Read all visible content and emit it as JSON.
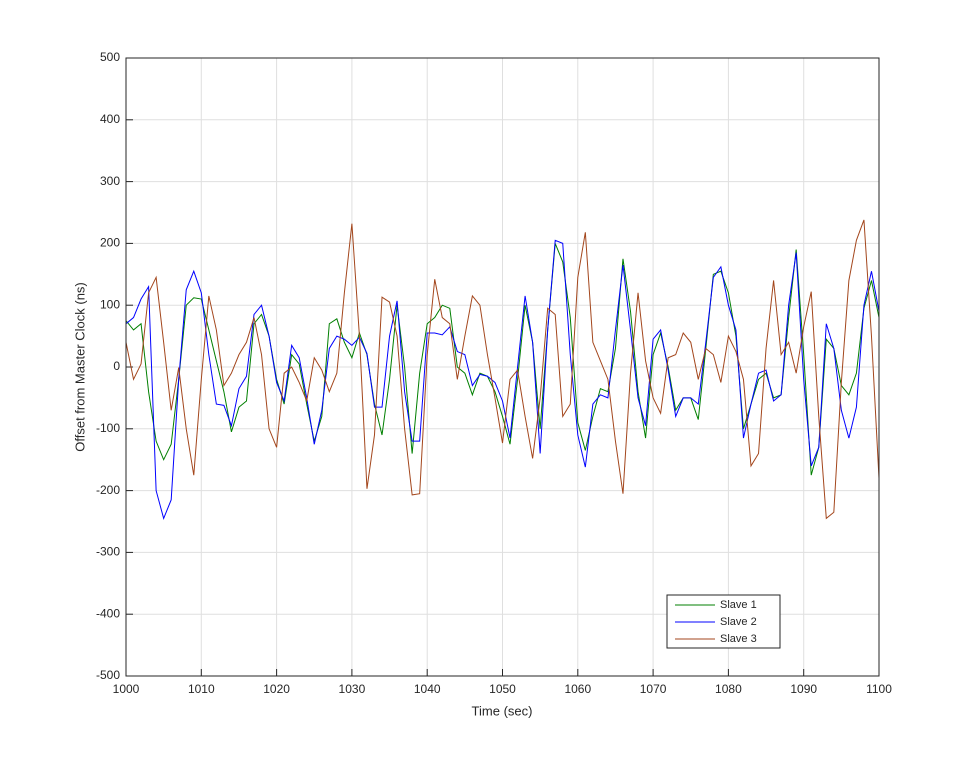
{
  "chart_data": {
    "type": "line",
    "x_label": "Time (sec)",
    "y_label": "Offset from Master Clock (ns)",
    "x": [
      1000,
      1001,
      1002,
      1003,
      1004,
      1005,
      1006,
      1007,
      1008,
      1009,
      1010,
      1011,
      1012,
      1013,
      1014,
      1015,
      1016,
      1017,
      1018,
      1019,
      1020,
      1021,
      1022,
      1023,
      1024,
      1025,
      1026,
      1027,
      1028,
      1029,
      1030,
      1031,
      1032,
      1033,
      1034,
      1035,
      1036,
      1037,
      1038,
      1039,
      1040,
      1041,
      1042,
      1043,
      1044,
      1045,
      1046,
      1047,
      1048,
      1049,
      1050,
      1051,
      1052,
      1053,
      1054,
      1055,
      1056,
      1057,
      1058,
      1059,
      1060,
      1061,
      1062,
      1063,
      1064,
      1065,
      1066,
      1067,
      1068,
      1069,
      1070,
      1071,
      1072,
      1073,
      1074,
      1075,
      1076,
      1077,
      1078,
      1079,
      1080,
      1081,
      1082,
      1083,
      1084,
      1085,
      1086,
      1087,
      1088,
      1089,
      1090,
      1091,
      1092,
      1093,
      1094,
      1095,
      1096,
      1097,
      1098,
      1099,
      1100
    ],
    "series": [
      {
        "name": "Slave 1",
        "color": "#007f00",
        "values": [
          75,
          60,
          70,
          -40,
          -120,
          -150,
          -125,
          -20,
          100,
          112,
          110,
          60,
          10,
          -40,
          -105,
          -65,
          -55,
          70,
          85,
          50,
          -20,
          -60,
          20,
          5,
          -60,
          -120,
          -80,
          70,
          78,
          40,
          15,
          55,
          20,
          -60,
          -110,
          -20,
          100,
          0,
          -140,
          -10,
          70,
          80,
          100,
          95,
          0,
          -10,
          -45,
          -10,
          -15,
          -40,
          -80,
          -125,
          -20,
          100,
          40,
          -100,
          60,
          200,
          170,
          80,
          -90,
          -135,
          -80,
          -35,
          -40,
          30,
          175,
          90,
          -40,
          -115,
          20,
          55,
          0,
          -70,
          -50,
          -50,
          -85,
          30,
          150,
          155,
          120,
          50,
          -100,
          -60,
          -20,
          -10,
          -50,
          -45,
          80,
          190,
          20,
          -175,
          -130,
          45,
          30,
          -30,
          -45,
          -10,
          95,
          140,
          80
        ]
      },
      {
        "name": "Slave 2",
        "color": "#0000ff",
        "values": [
          70,
          80,
          110,
          130,
          -200,
          -245,
          -215,
          -20,
          125,
          155,
          120,
          20,
          -60,
          -62,
          -95,
          -35,
          -15,
          85,
          100,
          50,
          -25,
          -55,
          35,
          15,
          -50,
          -125,
          -70,
          30,
          50,
          45,
          35,
          48,
          22,
          -65,
          -65,
          50,
          107,
          -40,
          -120,
          -120,
          55,
          55,
          52,
          65,
          25,
          20,
          -30,
          -12,
          -15,
          -25,
          -55,
          -115,
          0,
          115,
          40,
          -140,
          60,
          205,
          200,
          20,
          -110,
          -162,
          -60,
          -45,
          -50,
          60,
          165,
          60,
          -50,
          -95,
          45,
          60,
          -5,
          -80,
          -50,
          -50,
          -60,
          40,
          145,
          162,
          100,
          60,
          -115,
          -60,
          -10,
          -5,
          -55,
          -45,
          100,
          185,
          -20,
          -160,
          -130,
          70,
          30,
          -70,
          -115,
          -65,
          100,
          155,
          90
        ]
      },
      {
        "name": "Slave 3",
        "color": "#a3461c",
        "values": [
          40,
          -20,
          5,
          120,
          145,
          40,
          -70,
          -1,
          -100,
          -175,
          -20,
          115,
          60,
          -30,
          -10,
          20,
          40,
          80,
          20,
          -100,
          -130,
          -10,
          0,
          -25,
          -55,
          15,
          -5,
          -40,
          -10,
          120,
          232,
          50,
          -197,
          -110,
          113,
          105,
          50,
          -100,
          -207,
          -205,
          20,
          142,
          80,
          70,
          -20,
          50,
          115,
          100,
          20,
          -50,
          -123,
          -20,
          -5,
          -80,
          -148,
          -50,
          95,
          85,
          -80,
          -60,
          145,
          218,
          40,
          10,
          -20,
          -120,
          -205,
          -10,
          120,
          10,
          -50,
          -75,
          15,
          20,
          55,
          40,
          -20,
          30,
          20,
          -25,
          50,
          25,
          -20,
          -160,
          -140,
          30,
          140,
          20,
          40,
          -10,
          65,
          122,
          -80,
          -245,
          -235,
          -25,
          140,
          205,
          238,
          50,
          -180
        ]
      }
    ],
    "xlim": [
      1000,
      1100
    ],
    "xticks": [
      1000,
      1010,
      1020,
      1030,
      1040,
      1050,
      1060,
      1070,
      1080,
      1090,
      1100
    ],
    "ylim": [
      -500,
      500
    ],
    "yticks": [
      -500,
      -400,
      -300,
      -200,
      -100,
      0,
      100,
      200,
      300,
      400,
      500
    ],
    "grid": true,
    "legend": "lower right"
  }
}
